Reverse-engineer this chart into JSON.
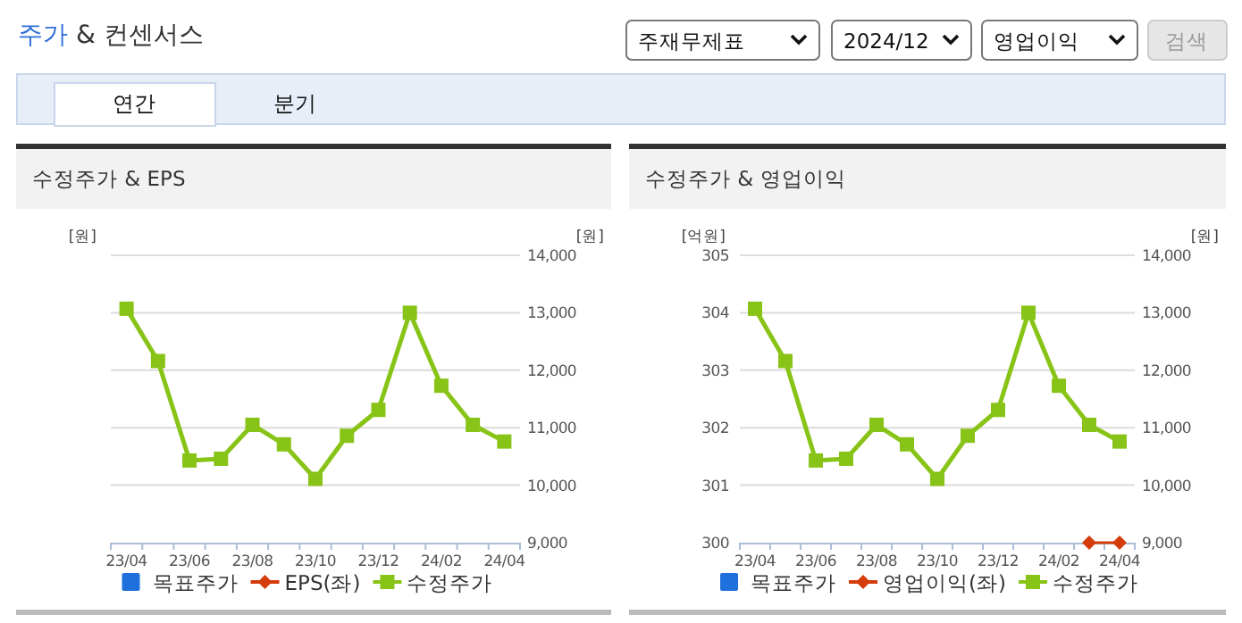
{
  "chart_data": [
    {
      "type": "other",
      "title": "주가 & 컨센서스",
      "annotations": [
        "주재무제표",
        "2024/12",
        "영업이익",
        "검색",
        "연간",
        "분기"
      ]
    },
    {
      "type": "line",
      "title": "수정주가 & EPS",
      "ylabel": "[원]",
      "y2label": "[원]",
      "categories": [
        "23/04",
        null,
        "23/06",
        null,
        "23/08",
        null,
        "23/10",
        null,
        "23/12",
        null,
        "24/02",
        null,
        "24/04"
      ],
      "y2lim": [
        9000,
        14000
      ],
      "y2ticks": [
        {
          "value": 9000,
          "label": "9,000"
        },
        {
          "value": 10000,
          "label": "10,000"
        },
        {
          "value": 11000,
          "label": "11,000"
        },
        {
          "value": 12000,
          "label": "12,000"
        },
        {
          "value": 13000,
          "label": "13,000"
        },
        {
          "value": 14000,
          "label": "14,000"
        }
      ],
      "grid": "y",
      "legend": "bottom",
      "series": [
        {
          "name": "목표주가",
          "type": "bar",
          "color": "#1f6fdc",
          "axis": "y2",
          "values": [
            null,
            null,
            null,
            null,
            null,
            null,
            null,
            null,
            null,
            null,
            null,
            null,
            null
          ]
        },
        {
          "name": "EPS(좌)",
          "type": "line",
          "color": "#d43c0c",
          "marker": "diamond",
          "axis": "y",
          "values": [
            null,
            null,
            null,
            null,
            null,
            null,
            null,
            null,
            null,
            null,
            null,
            null,
            null
          ]
        },
        {
          "name": "수정주가",
          "type": "line",
          "color": "#88c417",
          "marker": "square",
          "axis": "y2",
          "values": [
            13070,
            12160,
            10430,
            10460,
            11050,
            10710,
            10110,
            10860,
            11310,
            13000,
            11730,
            11050,
            10760
          ]
        }
      ]
    },
    {
      "type": "line",
      "title": "수정주가 & 영업이익",
      "ylabel": "[억원]",
      "y2label": "[원]",
      "categories": [
        "23/04",
        null,
        "23/06",
        null,
        "23/08",
        null,
        "23/10",
        null,
        "23/12",
        null,
        "24/02",
        null,
        "24/04"
      ],
      "ylim": [
        300,
        305
      ],
      "yticks": [
        300,
        301,
        302,
        303,
        304,
        305
      ],
      "y2lim": [
        9000,
        14000
      ],
      "y2ticks": [
        {
          "value": 9000,
          "label": "9,000"
        },
        {
          "value": 10000,
          "label": "10,000"
        },
        {
          "value": 11000,
          "label": "11,000"
        },
        {
          "value": 12000,
          "label": "12,000"
        },
        {
          "value": 13000,
          "label": "13,000"
        },
        {
          "value": 14000,
          "label": "14,000"
        }
      ],
      "grid": "y",
      "legend": "bottom",
      "series": [
        {
          "name": "목표주가",
          "type": "bar",
          "color": "#1f6fdc",
          "axis": "y2",
          "values": [
            null,
            null,
            null,
            null,
            null,
            null,
            null,
            null,
            null,
            null,
            null,
            null,
            null
          ]
        },
        {
          "name": "영업이익(좌)",
          "type": "line",
          "color": "#d43c0c",
          "marker": "diamond",
          "axis": "y",
          "values": [
            null,
            null,
            null,
            null,
            null,
            null,
            null,
            null,
            null,
            null,
            null,
            300,
            300
          ]
        },
        {
          "name": "수정주가",
          "type": "line",
          "color": "#88c417",
          "marker": "square",
          "axis": "y2",
          "values": [
            13070,
            12160,
            10430,
            10460,
            11050,
            10710,
            10110,
            10860,
            11310,
            13000,
            11730,
            11050,
            10760
          ]
        }
      ]
    }
  ]
}
